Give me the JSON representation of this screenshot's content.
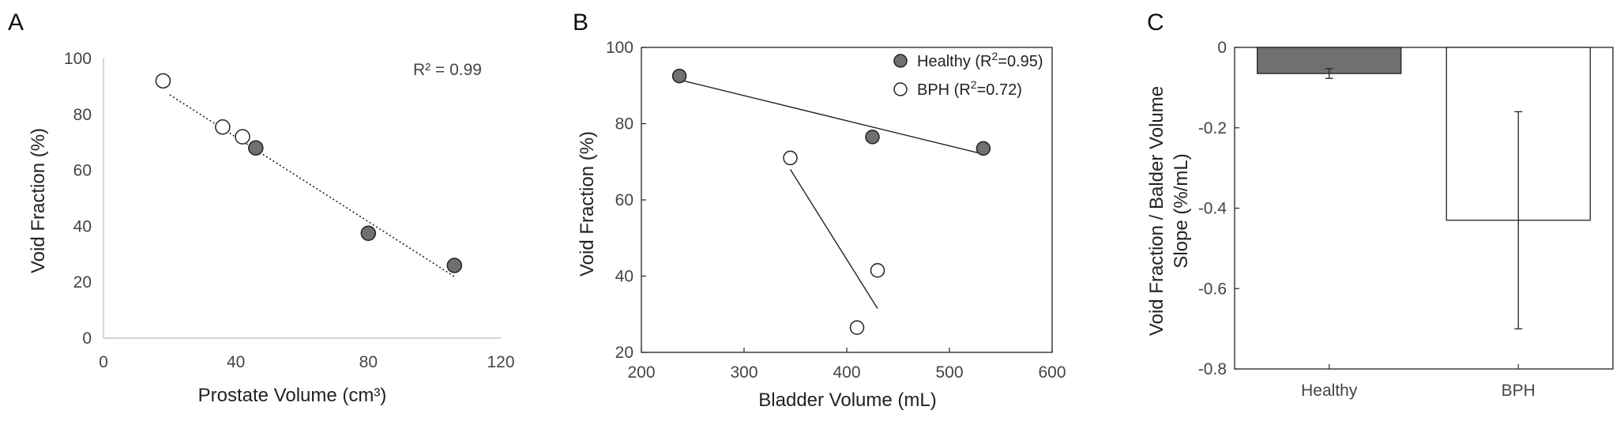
{
  "chart_data": [
    {
      "panel": "A",
      "type": "scatter",
      "xlabel": "Prostate Volume (cm³)",
      "ylabel": "Void Fraction (%)",
      "xlim": [
        0,
        120
      ],
      "ylim": [
        0,
        100
      ],
      "xticks": [
        0,
        40,
        80,
        120
      ],
      "yticks": [
        0,
        20,
        40,
        60,
        80,
        100
      ],
      "annotation": "R² = 0.99",
      "series": [
        {
          "name": "Healthy",
          "fill": "#707070",
          "x": [
            46,
            80,
            106
          ],
          "y": [
            68,
            37.5,
            26
          ]
        },
        {
          "name": "BPH",
          "fill": "#ffffff",
          "x": [
            18,
            36,
            42
          ],
          "y": [
            92,
            75.5,
            72
          ]
        }
      ],
      "fit": {
        "style": "dotted",
        "x": [
          20,
          106
        ],
        "y": [
          87,
          22
        ]
      }
    },
    {
      "panel": "B",
      "type": "scatter",
      "xlabel": "Bladder Volume (mL)",
      "ylabel": "Void Fraction (%)",
      "xlim": [
        200,
        600
      ],
      "ylim": [
        20,
        100
      ],
      "xticks": [
        200,
        300,
        400,
        500,
        600
      ],
      "yticks": [
        20,
        40,
        60,
        80,
        100
      ],
      "legend": {
        "placement": "top-right",
        "entries": [
          {
            "label": "Healthy (R",
            "sup": "2",
            "rest": "=0.95)",
            "fill": "#707070"
          },
          {
            "label": "BPH (R",
            "sup": "2",
            "rest": "=0.72)",
            "fill": "#ffffff"
          }
        ]
      },
      "series": [
        {
          "name": "Healthy",
          "fill": "#707070",
          "x": [
            237,
            425,
            533
          ],
          "y": [
            92.5,
            76.5,
            73.5
          ],
          "fit": {
            "x": [
              237,
              533
            ],
            "y": [
              91.5,
              72
            ]
          }
        },
        {
          "name": "BPH",
          "fill": "#ffffff",
          "x": [
            345,
            410,
            430
          ],
          "y": [
            71,
            26.5,
            41.5
          ],
          "fit": {
            "x": [
              345,
              430
            ],
            "y": [
              68,
              31.5
            ]
          }
        }
      ]
    },
    {
      "panel": "C",
      "type": "bar",
      "xlabel": "",
      "ylabel_lines": [
        "Void Fraction / Balder Volume",
        "Slope (%/mL)"
      ],
      "ylim": [
        -0.8,
        0
      ],
      "yticks": [
        0,
        -0.2,
        -0.4,
        -0.6,
        -0.8
      ],
      "ytick_labels": [
        "0",
        "-0.2",
        "-0.4",
        "-0.6",
        "-0.8"
      ],
      "categories": [
        "Healthy",
        "BPH"
      ],
      "values": [
        -0.065,
        -0.43
      ],
      "errors_low": [
        -0.077,
        -0.7
      ],
      "errors_high": [
        -0.053,
        -0.16
      ],
      "fills": [
        "#707070",
        "#ffffff"
      ]
    }
  ]
}
